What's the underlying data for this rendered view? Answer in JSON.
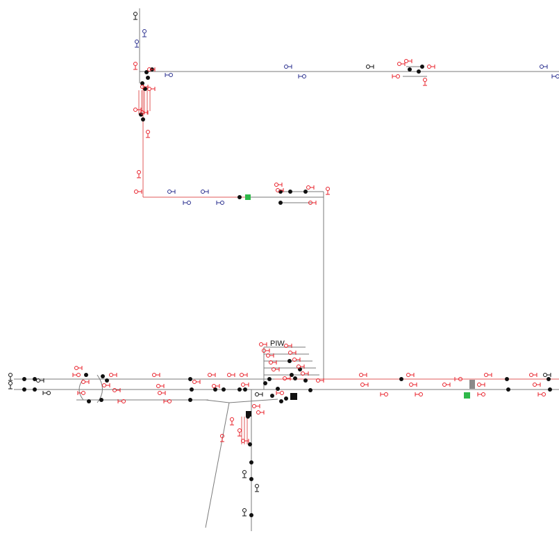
{
  "diagram": {
    "labels": {
      "station_name": "PIW"
    },
    "colors": {
      "background": "#ffffff",
      "track": "#7a7a7a",
      "track_alt": "#4d4d4d",
      "route_red": "#e05a5a",
      "signal_red": "#e8202a",
      "signal_blue": "#2a2f8f",
      "node": "#111111",
      "green_box": "#2fb84a",
      "grey_box": "#8a8a8a"
    }
  }
}
